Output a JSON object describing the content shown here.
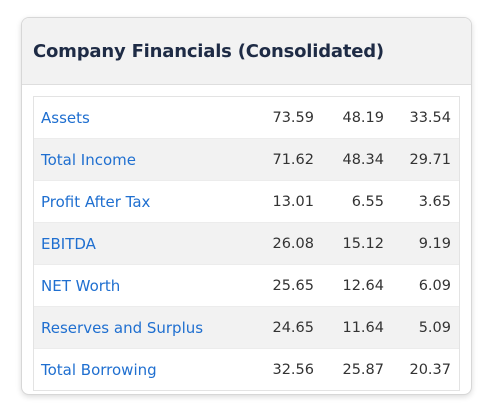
{
  "card": {
    "title": "Company Financials (Consolidated)"
  },
  "rows": [
    {
      "label": "Assets",
      "values": [
        "73.59",
        "48.19",
        "33.54"
      ]
    },
    {
      "label": "Total Income",
      "values": [
        "71.62",
        "48.34",
        "29.71"
      ]
    },
    {
      "label": "Profit After Tax",
      "values": [
        "13.01",
        "6.55",
        "3.65"
      ]
    },
    {
      "label": "EBITDA",
      "values": [
        "26.08",
        "15.12",
        "9.19"
      ]
    },
    {
      "label": "NET Worth",
      "values": [
        "25.65",
        "12.64",
        "6.09"
      ]
    },
    {
      "label": "Reserves and Surplus",
      "values": [
        "24.65",
        "11.64",
        "5.09"
      ]
    },
    {
      "label": "Total Borrowing",
      "values": [
        "32.56",
        "25.87",
        "20.37"
      ]
    }
  ],
  "colors": {
    "link": "#1f6fd0",
    "title": "#1e2b45",
    "stripe": "#f2f2f2"
  }
}
